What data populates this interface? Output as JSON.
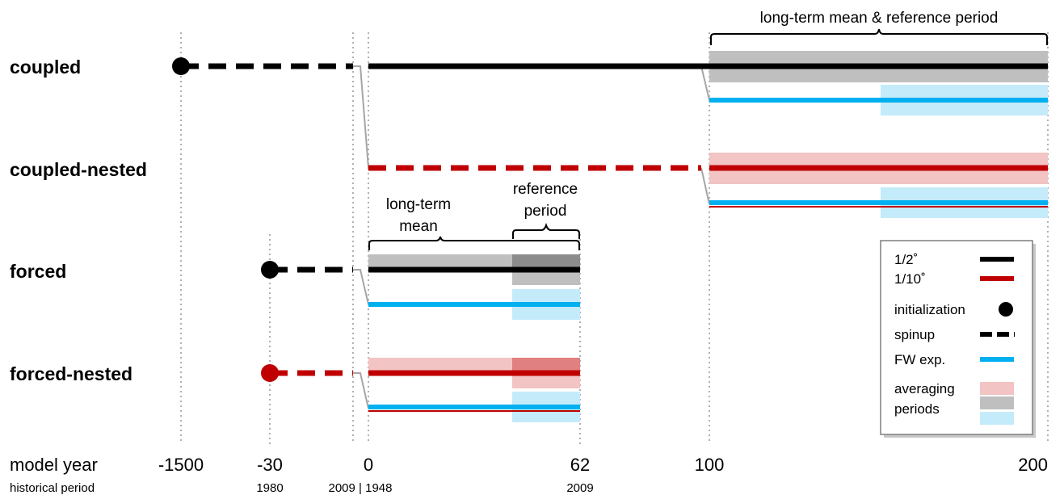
{
  "rows": [
    {
      "label": "coupled"
    },
    {
      "label": "coupled-nested"
    },
    {
      "label": "forced"
    },
    {
      "label": "forced-nested"
    }
  ],
  "annotations": {
    "long_term_mean_reference": "long-term mean & reference period",
    "long_term_mean_line1": "long-term",
    "long_term_mean_line2": "mean",
    "reference_period_line1": "reference",
    "reference_period_line2": "period"
  },
  "axis": {
    "model_year_label": "model year",
    "historical_label": "historical period",
    "model_ticks": [
      "-1500",
      "-30",
      "0",
      "62",
      "100",
      "200"
    ],
    "historical_ticks": [
      "1980",
      "2009 | 1948",
      "2009"
    ]
  },
  "legend": {
    "half_degree": "1/2˚",
    "tenth_degree": "1/10˚",
    "initialization": "initialization",
    "spinup": "spinup",
    "fw_exp": "FW exp.",
    "averaging_line1": "averaging",
    "averaging_line2": "periods"
  },
  "colors": {
    "black": "#000000",
    "red": "#c00000",
    "blue": "#00b0f0",
    "grey_band": "#bfbfbf",
    "grey_band_dark": "#8c8c8c",
    "pink_band": "#f2c4c4",
    "pink_band_dark": "#e08080",
    "light_blue_band": "#c4ebfa",
    "grid": "#b0b0b0",
    "connector": "#a6a6a6"
  }
}
